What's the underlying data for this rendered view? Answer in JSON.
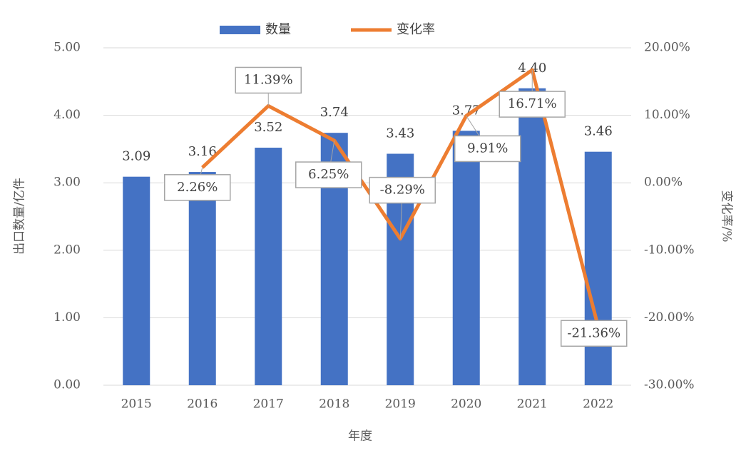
{
  "chart_data": {
    "type": "bar_line",
    "x_label": "年度",
    "y_label": "出口数量/亿件",
    "y2_label": "变化率/%",
    "categories": [
      "2015",
      "2016",
      "2017",
      "2018",
      "2019",
      "2020",
      "2021",
      "2022"
    ],
    "series": [
      {
        "name": "数量",
        "type": "bar",
        "color": "#4472c4",
        "axis": "y",
        "values": [
          3.09,
          3.16,
          3.52,
          3.74,
          3.43,
          3.77,
          4.4,
          3.46
        ],
        "value_labels": [
          "3.09",
          "3.16",
          "3.52",
          "3.74",
          "3.43",
          "3.77",
          "4.40",
          "3.46"
        ]
      },
      {
        "name": "变化率",
        "type": "line",
        "color": "#ed7d31",
        "axis": "y2",
        "values": [
          null,
          2.26,
          11.39,
          6.25,
          -8.29,
          9.91,
          16.71,
          -21.36
        ],
        "value_labels": [
          null,
          "2.26%",
          "11.39%",
          "6.25%",
          "-8.29%",
          "9.91%",
          "16.71%",
          "-21.36%"
        ]
      }
    ],
    "ylim": [
      0,
      5
    ],
    "yticks": [
      {
        "value": 0,
        "label": "0.00"
      },
      {
        "value": 1,
        "label": "1.00"
      },
      {
        "value": 2,
        "label": "2.00"
      },
      {
        "value": 3,
        "label": "3.00"
      },
      {
        "value": 4,
        "label": "4.00"
      },
      {
        "value": 5,
        "label": "5.00"
      }
    ],
    "y2lim": [
      -30,
      20
    ],
    "y2ticks": [
      {
        "value": -30,
        "label": "-30.00%"
      },
      {
        "value": -20,
        "label": "-20.00%"
      },
      {
        "value": -10,
        "label": "-10.00%"
      },
      {
        "value": 0,
        "label": "0.00%"
      },
      {
        "value": 10,
        "label": "10.00%"
      },
      {
        "value": 20,
        "label": "20.00%"
      }
    ],
    "grid": true,
    "legend": "top"
  }
}
